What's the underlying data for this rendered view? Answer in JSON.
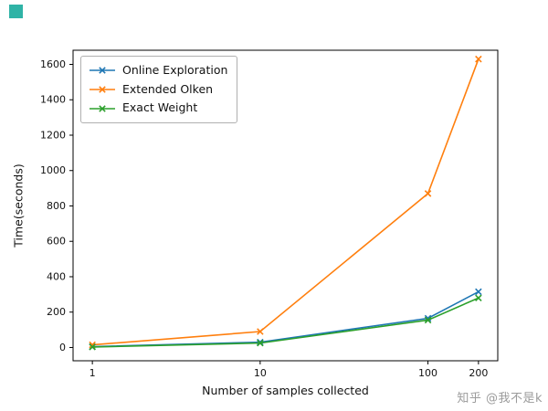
{
  "watermark": {
    "text": "知乎 @我不是k"
  },
  "corner_mark": {
    "color": "#2fb3a6"
  },
  "chart_data": {
    "type": "line",
    "title": "",
    "xlabel": "Number of samples collected",
    "ylabel": "Time(seconds)",
    "xscale": "log",
    "x": [
      1,
      10,
      100,
      200
    ],
    "xtick_labels": [
      "1",
      "10",
      "100",
      "200"
    ],
    "yticks": [
      0,
      200,
      400,
      600,
      800,
      1000,
      1200,
      1400,
      1600
    ],
    "ylim": [
      -75,
      1680
    ],
    "grid": false,
    "marker": "x",
    "legend_position": "upper left",
    "series": [
      {
        "name": "Online Exploration",
        "color": "#1f77b4",
        "values": [
          5,
          30,
          165,
          315
        ]
      },
      {
        "name": "Extended Olken",
        "color": "#ff7f0e",
        "values": [
          15,
          90,
          870,
          1630
        ]
      },
      {
        "name": "Exact Weight",
        "color": "#2ca02c",
        "values": [
          3,
          25,
          155,
          280
        ]
      }
    ]
  }
}
